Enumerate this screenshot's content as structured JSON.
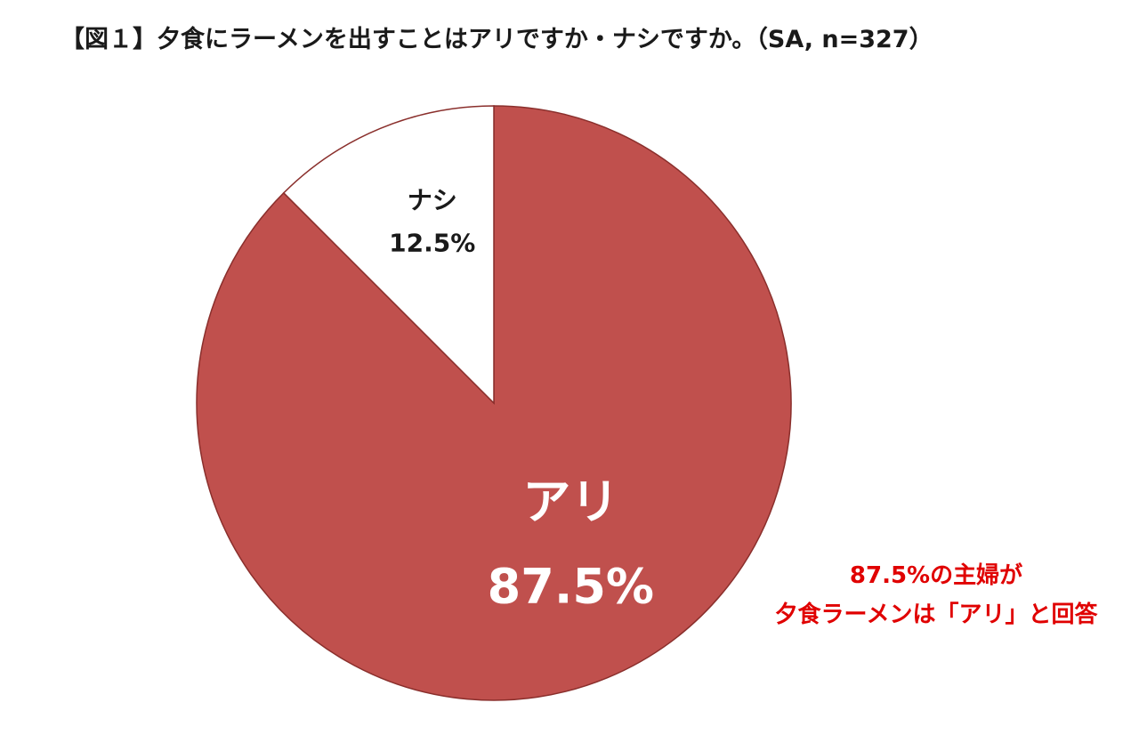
{
  "title": "【図１】夕食にラーメンを出すことはアリですか・ナシですか。（SA, n=327）",
  "chart_data": {
    "type": "pie",
    "title": "【図１】夕食にラーメンを出すことはアリですか・ナシですか。（SA, n=327）",
    "slices": [
      {
        "label": "アリ",
        "value": 87.5,
        "value_label": "87.5%",
        "color": "#c0504d"
      },
      {
        "label": "ナシ",
        "value": 12.5,
        "value_label": "12.5%",
        "color": "#ffffff"
      }
    ],
    "legend": "none"
  },
  "callout": {
    "line1": "87.5%の主婦が",
    "line2": "夕食ラーメンは「アリ」と回答",
    "color": "#e00000"
  },
  "colors": {
    "slice_fill": "#c0504d",
    "slice_stroke": "#8a2f2c",
    "white_slice": "#ffffff",
    "callout_text": "#e00000"
  }
}
